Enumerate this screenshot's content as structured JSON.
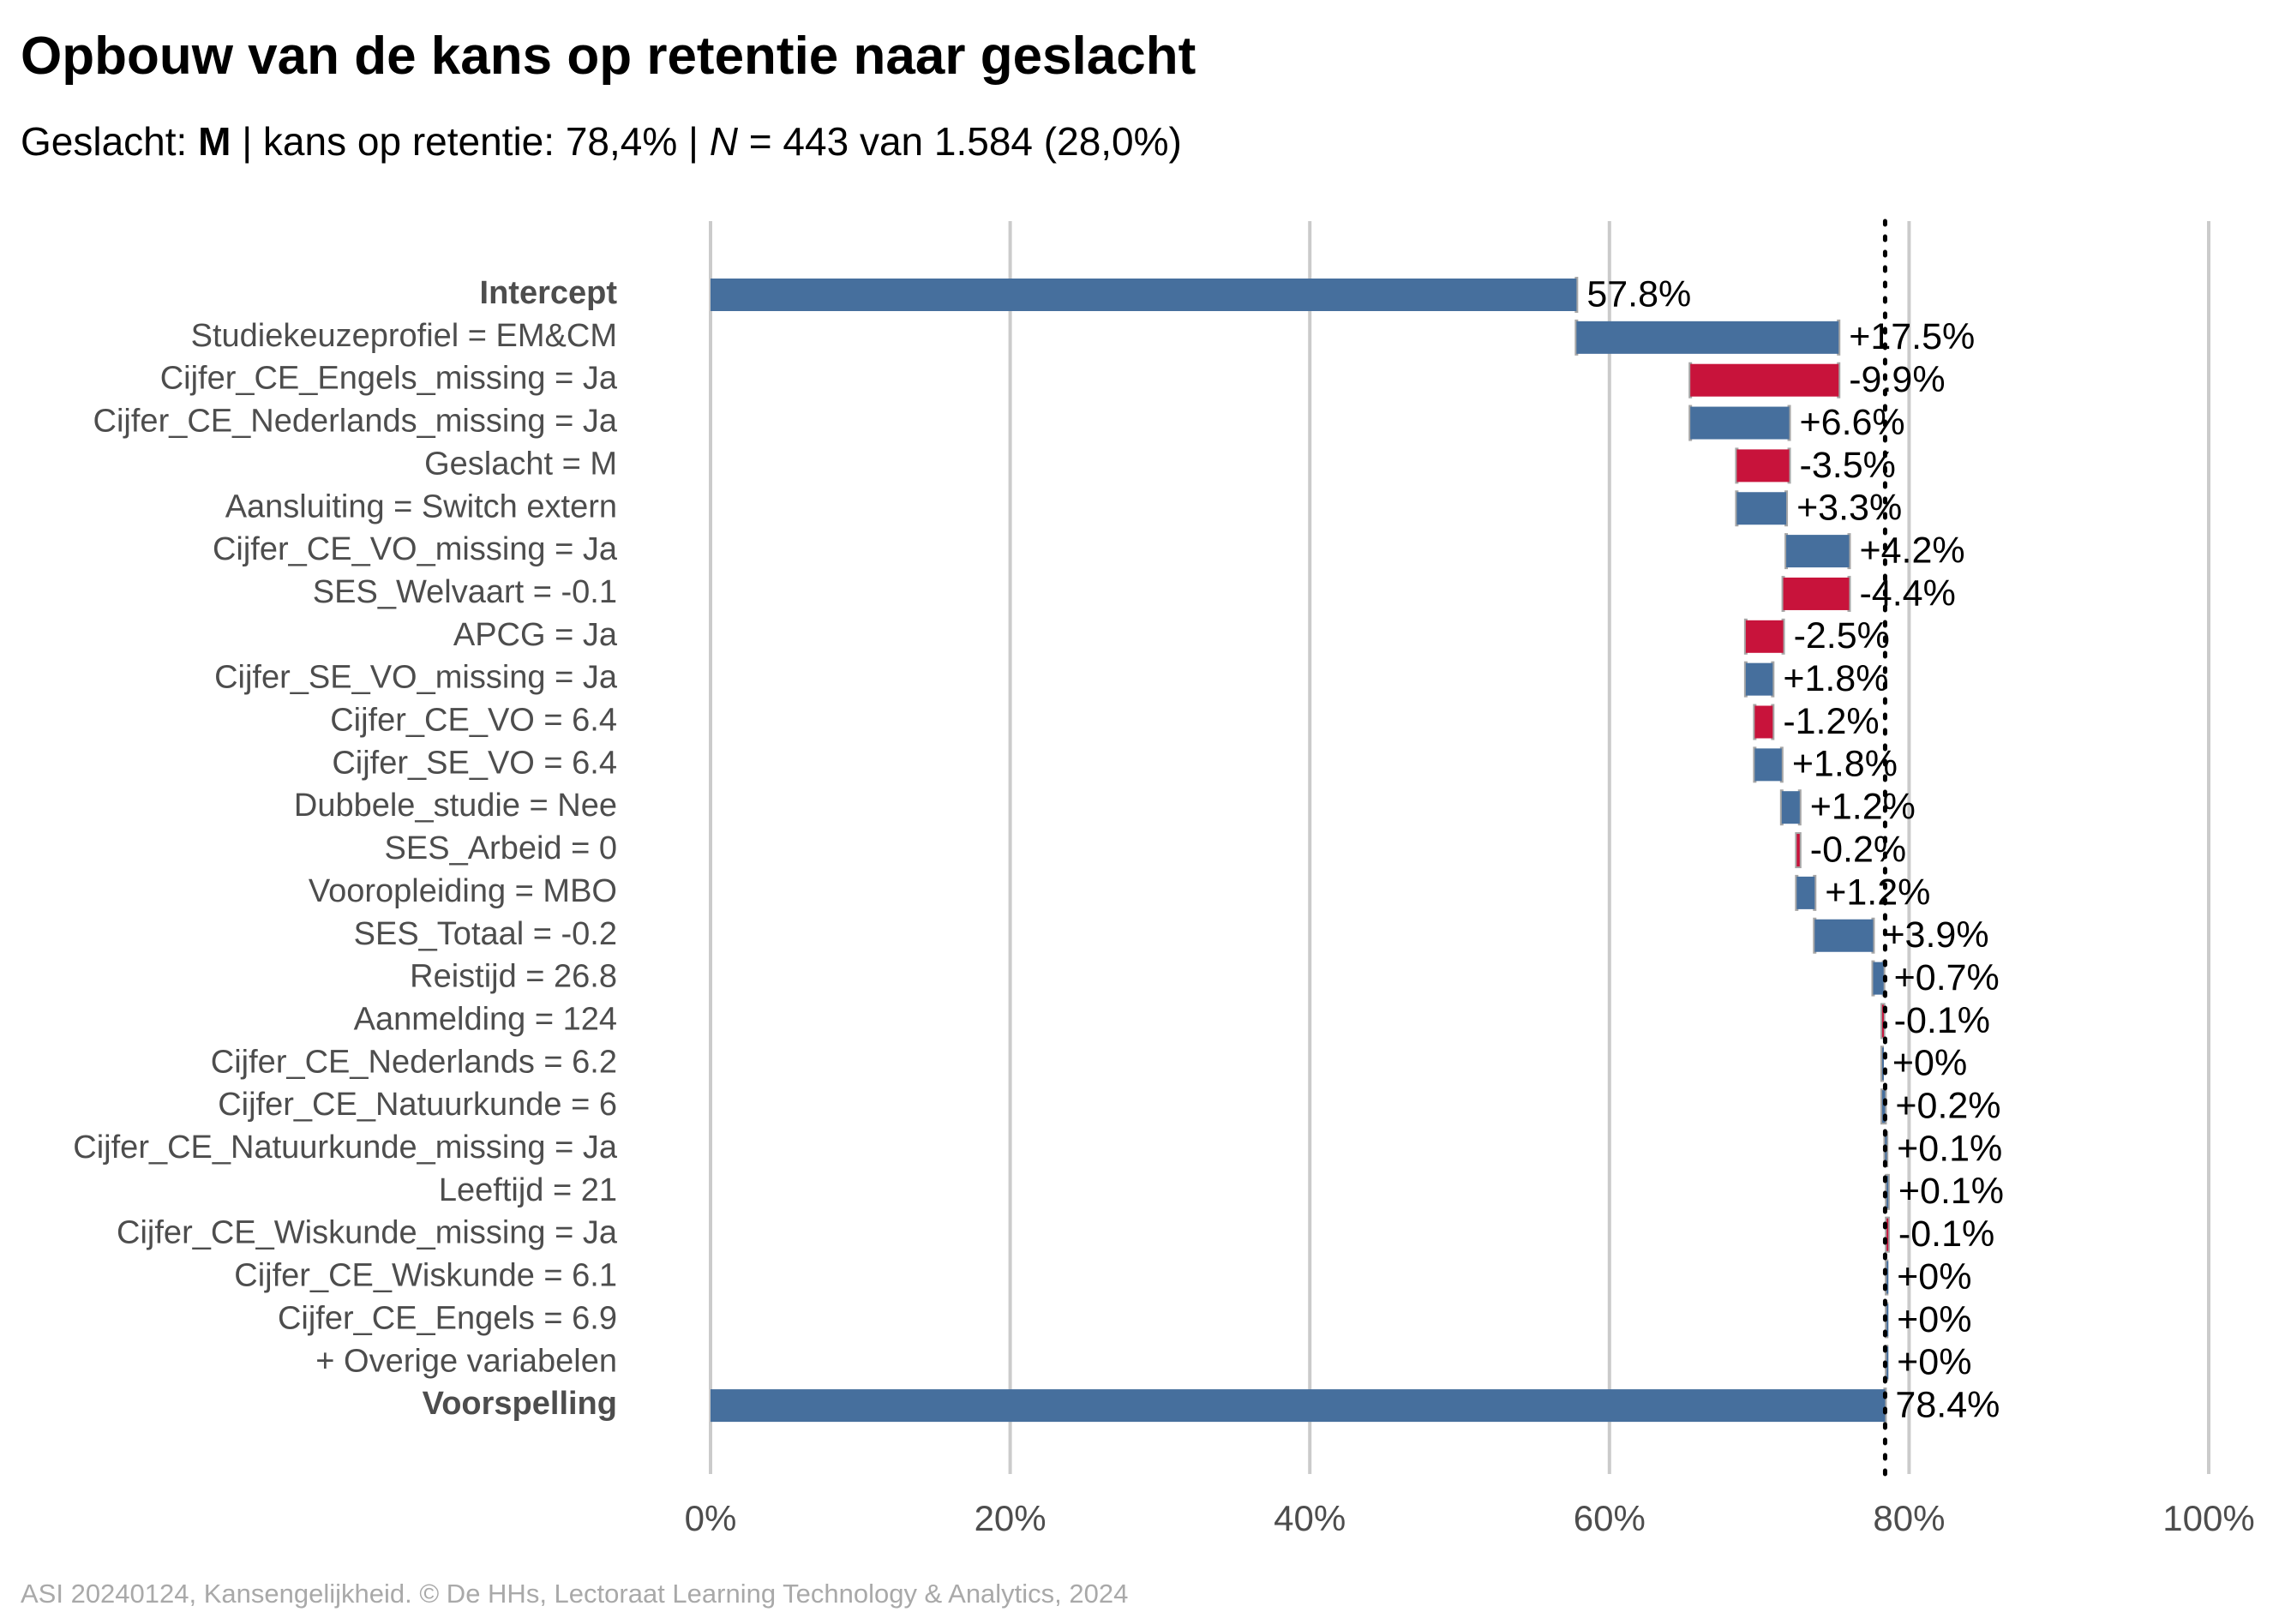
{
  "title": "Opbouw van de kans op retentie naar geslacht",
  "subtitle": {
    "gender_prefix": "Geslacht: ",
    "gender_value": "M",
    "retention_text": " | kans op retentie: 78,4% | ",
    "n_symbol": "N",
    "n_text": " = 443 van 1.584 (28,0%)"
  },
  "caption": "ASI 20240124, Kansengelijkheid. © De HHs, Lectoraat Learning Technology & Analytics, 2024",
  "colors": {
    "positive": "#466f9d",
    "negative": "#c8133b",
    "grid": "#cbcbcb",
    "connector": "#a6a6a6",
    "reference": "#000000"
  },
  "chart_data": {
    "type": "bar",
    "subtype": "waterfall",
    "orientation": "horizontal",
    "xlim": [
      0,
      100
    ],
    "x_ticks": [
      "0%",
      "20%",
      "40%",
      "60%",
      "80%",
      "100%"
    ],
    "x_tick_values": [
      0,
      20,
      40,
      60,
      80,
      100
    ],
    "reference_line": 78.4,
    "grid": true,
    "rows": [
      {
        "label": "Intercept",
        "label_bold": true,
        "kind": "total",
        "start": 0,
        "end": 57.8,
        "value_label": "57.8%"
      },
      {
        "label": "Studiekeuzeprofiel = EM&CM",
        "kind": "step",
        "start": 57.8,
        "end": 75.3,
        "value_label": "+17.5%"
      },
      {
        "label": "Cijfer_CE_Engels_missing = Ja",
        "kind": "step",
        "start": 75.3,
        "end": 65.4,
        "value_label": "-9.9%"
      },
      {
        "label": "Cijfer_CE_Nederlands_missing = Ja",
        "kind": "step",
        "start": 65.4,
        "end": 72.0,
        "value_label": "+6.6%"
      },
      {
        "label": "Geslacht = M",
        "kind": "step",
        "start": 72.0,
        "end": 68.5,
        "value_label": "-3.5%"
      },
      {
        "label": "Aansluiting = Switch extern",
        "kind": "step",
        "start": 68.5,
        "end": 71.8,
        "value_label": "+3.3%"
      },
      {
        "label": "Cijfer_CE_VO_missing = Ja",
        "kind": "step",
        "start": 71.8,
        "end": 76.0,
        "value_label": "+4.2%"
      },
      {
        "label": "SES_Welvaart = -0.1",
        "kind": "step",
        "start": 76.0,
        "end": 71.6,
        "value_label": "-4.4%"
      },
      {
        "label": "APCG = Ja",
        "kind": "step",
        "start": 71.6,
        "end": 69.1,
        "value_label": "-2.5%"
      },
      {
        "label": "Cijfer_SE_VO_missing = Ja",
        "kind": "step",
        "start": 69.1,
        "end": 70.9,
        "value_label": "+1.8%"
      },
      {
        "label": "Cijfer_CE_VO = 6.4",
        "kind": "step",
        "start": 70.9,
        "end": 69.7,
        "value_label": "-1.2%"
      },
      {
        "label": "Cijfer_SE_VO = 6.4",
        "kind": "step",
        "start": 69.7,
        "end": 71.5,
        "value_label": "+1.8%"
      },
      {
        "label": "Dubbele_studie = Nee",
        "kind": "step",
        "start": 71.5,
        "end": 72.7,
        "value_label": "+1.2%"
      },
      {
        "label": "SES_Arbeid = 0",
        "kind": "step",
        "start": 72.7,
        "end": 72.5,
        "value_label": "-0.2%"
      },
      {
        "label": "Vooropleiding = MBO",
        "kind": "step",
        "start": 72.5,
        "end": 73.7,
        "value_label": "+1.2%"
      },
      {
        "label": "SES_Totaal = -0.2",
        "kind": "step",
        "start": 73.7,
        "end": 77.6,
        "value_label": "+3.9%"
      },
      {
        "label": "Reistijd = 26.8",
        "kind": "step",
        "start": 77.6,
        "end": 78.3,
        "value_label": "+0.7%"
      },
      {
        "label": "Aanmelding = 124",
        "kind": "step",
        "start": 78.3,
        "end": 78.2,
        "value_label": "-0.1%"
      },
      {
        "label": "Cijfer_CE_Nederlands = 6.2",
        "kind": "step",
        "start": 78.2,
        "end": 78.2,
        "value_label": "+0%"
      },
      {
        "label": "Cijfer_CE_Natuurkunde = 6",
        "kind": "step",
        "start": 78.2,
        "end": 78.4,
        "value_label": "+0.2%"
      },
      {
        "label": "Cijfer_CE_Natuurkunde_missing = Ja",
        "kind": "step",
        "start": 78.4,
        "end": 78.5,
        "value_label": "+0.1%"
      },
      {
        "label": "Leeftijd = 21",
        "kind": "step",
        "start": 78.5,
        "end": 78.6,
        "value_label": "+0.1%"
      },
      {
        "label": "Cijfer_CE_Wiskunde_missing = Ja",
        "kind": "step",
        "start": 78.6,
        "end": 78.5,
        "value_label": "-0.1%"
      },
      {
        "label": "Cijfer_CE_Wiskunde = 6.1",
        "kind": "step",
        "start": 78.5,
        "end": 78.5,
        "value_label": "+0%"
      },
      {
        "label": "Cijfer_CE_Engels = 6.9",
        "kind": "step",
        "start": 78.5,
        "end": 78.5,
        "value_label": "+0%"
      },
      {
        "label": "+ Overige variabelen",
        "kind": "step",
        "start": 78.5,
        "end": 78.5,
        "value_label": "+0%"
      },
      {
        "label": "Voorspelling",
        "label_bold": true,
        "kind": "total",
        "start": 0,
        "end": 78.4,
        "value_label": "78.4%"
      }
    ]
  }
}
